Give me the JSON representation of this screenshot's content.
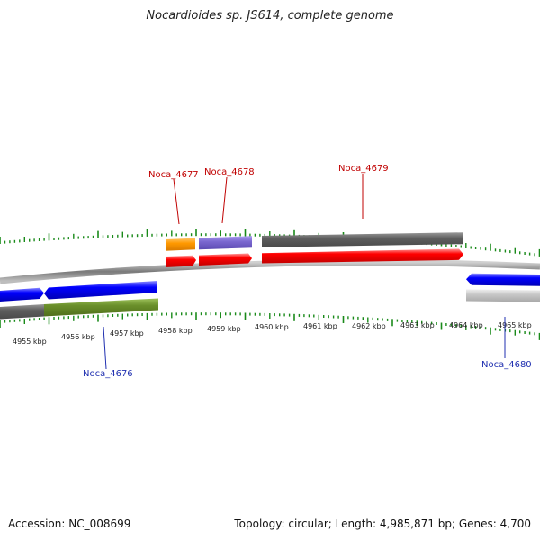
{
  "title": "Nocardioides sp. JS614, complete genome",
  "footer": {
    "accession": "Accession: NC_008699",
    "summary": "Topology: circular; Length: 4,985,871 bp; Genes: 4,700"
  },
  "colors": {
    "forward_cds": "#ff0000",
    "reverse_cds": "#0000ff",
    "gene_gray": "#6b6b6b",
    "gene_orange": "#ff9900",
    "gene_purple": "#7b68d0",
    "gene_green": "#6a8f2a",
    "gene_lightgray": "#c8c8c8",
    "tick_green": "#1a8a1a",
    "label_red": "#c00000",
    "label_blue": "#1f2fb0"
  },
  "scale": {
    "unit": "kbp",
    "labels": [
      "4955 kbp",
      "4956 kbp",
      "4957 kbp",
      "4958 kbp",
      "4959 kbp",
      "4960 kbp",
      "4961 kbp",
      "4962 kbp",
      "4963 kbp",
      "4964 kbp",
      "4965 kbp"
    ]
  },
  "genes": [
    {
      "label": "Noca_4676",
      "strand": "reverse",
      "label_color": "blue"
    },
    {
      "label": "Noca_4677",
      "strand": "forward",
      "label_color": "red"
    },
    {
      "label": "Noca_4678",
      "strand": "forward",
      "label_color": "red"
    },
    {
      "label": "Noca_4679",
      "strand": "forward",
      "label_color": "red"
    },
    {
      "label": "Noca_4680",
      "strand": "reverse",
      "label_color": "blue"
    }
  ]
}
